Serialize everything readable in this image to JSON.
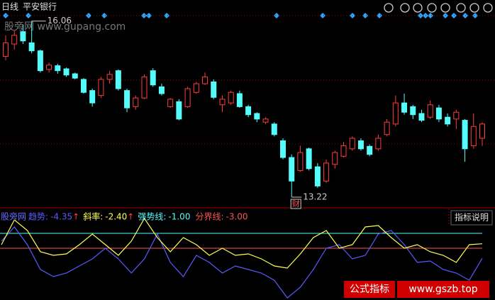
{
  "header": {
    "period": "日线",
    "stock": "平安银行"
  },
  "watermarks": {
    "top": "股旁网 www.gupang.com",
    "bottom_tag": "公式指标",
    "bottom_url": "www.gszb.top"
  },
  "chart_data": {
    "type": "candlestick",
    "ylim": [
      13.06,
      16.4
    ],
    "grid_levels": [
      16.15,
      15.11,
      14.08
    ],
    "up_color": "#ff3c3c",
    "down_color": "#54fcfc",
    "low_badge": "财",
    "candles": [
      [
        15.49,
        15.71,
        15.83,
        15.43
      ],
      [
        15.69,
        15.83,
        15.92,
        15.6
      ],
      [
        15.89,
        15.74,
        16.0,
        15.69
      ],
      [
        15.71,
        15.58,
        16.06,
        15.54
      ],
      [
        15.58,
        15.26,
        15.6,
        15.23
      ],
      [
        15.28,
        15.35,
        15.39,
        15.23
      ],
      [
        15.34,
        15.26,
        15.37,
        15.21
      ],
      [
        15.29,
        15.19,
        15.31,
        15.16
      ],
      [
        15.21,
        15.14,
        15.23,
        15.12
      ],
      [
        15.12,
        14.91,
        15.14,
        14.89
      ],
      [
        14.94,
        14.74,
        14.97,
        14.68
      ],
      [
        14.86,
        15.12,
        15.16,
        14.82
      ],
      [
        15.12,
        15.2,
        15.26,
        15.05
      ],
      [
        15.26,
        14.97,
        15.28,
        14.94
      ],
      [
        14.94,
        14.66,
        14.97,
        14.59
      ],
      [
        14.68,
        14.82,
        14.86,
        14.63
      ],
      [
        14.82,
        15.16,
        15.2,
        14.8
      ],
      [
        15.26,
        15.03,
        15.3,
        15.0
      ],
      [
        15.0,
        14.89,
        15.05,
        14.86
      ],
      [
        14.68,
        14.8,
        14.82,
        14.66
      ],
      [
        14.76,
        14.48,
        14.8,
        14.46
      ],
      [
        14.68,
        14.97,
        15.0,
        14.66
      ],
      [
        14.91,
        15.05,
        15.08,
        14.89
      ],
      [
        15.05,
        15.16,
        15.23,
        15.03
      ],
      [
        15.08,
        14.83,
        15.12,
        14.8
      ],
      [
        14.71,
        14.8,
        14.86,
        14.59
      ],
      [
        14.74,
        14.91,
        14.94,
        14.71
      ],
      [
        14.89,
        14.68,
        14.94,
        14.66
      ],
      [
        14.68,
        14.55,
        14.71,
        14.51
      ],
      [
        14.57,
        14.48,
        14.59,
        14.43
      ],
      [
        14.43,
        14.48,
        14.51,
        14.4
      ],
      [
        14.4,
        14.23,
        14.43,
        14.2
      ],
      [
        14.13,
        13.86,
        14.17,
        13.83
      ],
      [
        13.86,
        13.48,
        13.91,
        13.22
      ],
      [
        13.65,
        13.94,
        14.05,
        13.63
      ],
      [
        14.0,
        13.68,
        14.02,
        13.65
      ],
      [
        13.71,
        13.4,
        13.77,
        13.37
      ],
      [
        13.48,
        13.77,
        13.83,
        13.45
      ],
      [
        13.75,
        13.94,
        13.97,
        13.68
      ],
      [
        13.88,
        14.05,
        14.11,
        13.86
      ],
      [
        14.0,
        14.17,
        14.2,
        13.97
      ],
      [
        14.13,
        14.0,
        14.17,
        13.97
      ],
      [
        14.04,
        13.91,
        14.07,
        13.88
      ],
      [
        14.0,
        14.17,
        14.23,
        13.97
      ],
      [
        14.23,
        14.43,
        14.48,
        14.2
      ],
      [
        14.4,
        14.74,
        14.86,
        14.36
      ],
      [
        14.74,
        14.59,
        14.89,
        14.55
      ],
      [
        14.68,
        14.55,
        14.71,
        14.48
      ],
      [
        14.57,
        14.46,
        14.63,
        14.43
      ],
      [
        14.51,
        14.71,
        14.78,
        14.48
      ],
      [
        14.66,
        14.48,
        14.71,
        14.43
      ],
      [
        14.51,
        14.4,
        14.57,
        14.36
      ],
      [
        14.48,
        14.59,
        14.63,
        14.32
      ],
      [
        14.46,
        14.0,
        14.48,
        13.79
      ],
      [
        14.05,
        14.36,
        14.57,
        14.0
      ],
      [
        14.17,
        14.4,
        14.43,
        14.05
      ]
    ]
  },
  "indicator": {
    "type": "line",
    "name": "股旁网",
    "button": "指标说明",
    "ylim": [
      -9.95,
      2.14
    ],
    "series": [
      {
        "name": "趋势:",
        "color": "#5a5aff",
        "last_label": "-4.35",
        "arrow": "↑",
        "values": [
          -2.05,
          -0.14,
          -2.52,
          -5.86,
          -6.81,
          -6.33,
          -5.38,
          -4.43,
          -3.0,
          -4.43,
          -6.33,
          -4.43,
          -1.1,
          -4.9,
          -6.81,
          -3.95,
          -4.9,
          -6.33,
          -5.38,
          -5.86,
          -6.33,
          -7.29,
          -9.67,
          -8.24,
          -5.86,
          -3.0,
          -2.52,
          -4.43,
          -3.95,
          -1.1,
          -0.62,
          -2.52,
          -4.9,
          -4.71,
          -5.86,
          -6.33,
          -7.29,
          -4.35
        ]
      },
      {
        "name": "斜率:",
        "color": "#ffff54",
        "last_label": "-2.40",
        "arrow": "↑",
        "values": [
          -2.52,
          0.81,
          -0.62,
          -3.48,
          -3.95,
          -3.76,
          -2.52,
          -1.1,
          -2.52,
          -3.95,
          -2.05,
          1.0,
          -1.57,
          -3.48,
          -1.57,
          -2.52,
          -3.95,
          -3.0,
          -3.95,
          -3.76,
          -4.43,
          -5.38,
          -5.67,
          -3.76,
          -1.57,
          -0.62,
          -3.0,
          -2.52,
          -0.14,
          0.05,
          -1.57,
          -3.0,
          -2.52,
          -3.48,
          -3.95,
          -4.9,
          -2.52,
          -2.4
        ]
      }
    ],
    "levels": [
      {
        "name": "强势线:",
        "value": -1,
        "label": "-1.00",
        "color": "#54fcfc"
      },
      {
        "name": "分界线:",
        "value": -3,
        "label": "-3.00",
        "color": "#ff5454"
      }
    ]
  }
}
